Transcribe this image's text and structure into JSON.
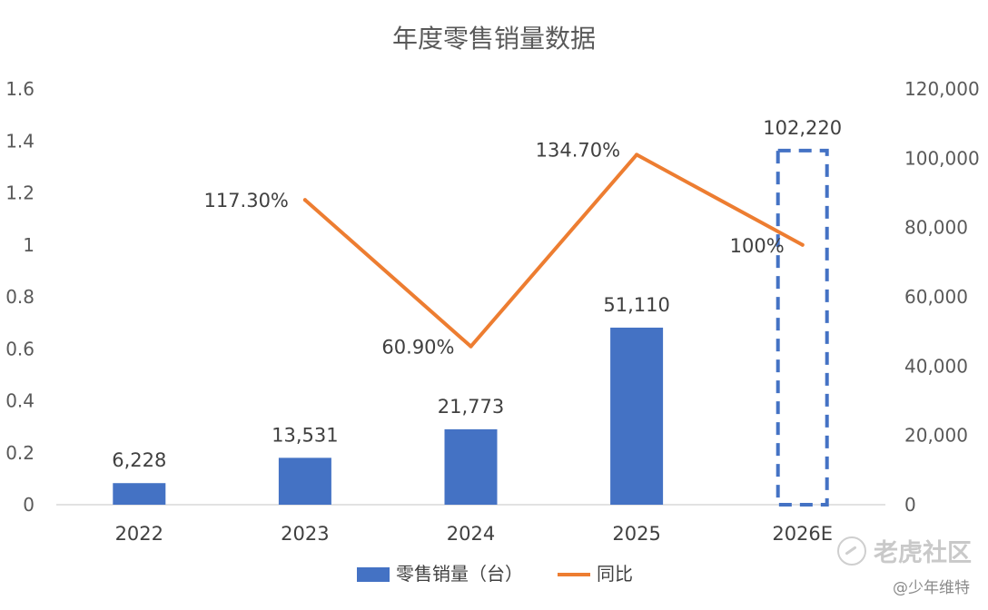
{
  "chart_data": {
    "type": "bar",
    "title": "年度零售销量数据",
    "categories": [
      "2022",
      "2023",
      "2024",
      "2025",
      "2026E"
    ],
    "series": [
      {
        "name": "零售销量（台）",
        "type": "bar",
        "axis": "right",
        "values": [
          6228,
          13531,
          21773,
          51110,
          102220
        ],
        "labels": [
          "6,228",
          "13,531",
          "21,773",
          "51,110",
          "102,220"
        ],
        "color": "#4472C4",
        "last_bar_style": "dashed-outline"
      },
      {
        "name": "同比",
        "type": "line",
        "axis": "left",
        "values": [
          null,
          1.173,
          0.609,
          1.347,
          1.0
        ],
        "labels": [
          "",
          "117.30%",
          "60.90%",
          "134.70%",
          "100%"
        ],
        "color": "#ED7D31"
      }
    ],
    "y_left": {
      "ylim": [
        0,
        1.6
      ],
      "ticks": [
        "0",
        "0.2",
        "0.4",
        "0.6",
        "0.8",
        "1",
        "1.2",
        "1.4",
        "1.6"
      ]
    },
    "y_right": {
      "ylim": [
        0,
        120000
      ],
      "ticks": [
        "0",
        "20,000",
        "40,000",
        "60,000",
        "80,000",
        "100,000",
        "120,000"
      ]
    },
    "legend": {
      "position": "bottom"
    },
    "grid": false
  },
  "watermark": {
    "site": "老虎社区",
    "author": "@少年维特"
  }
}
